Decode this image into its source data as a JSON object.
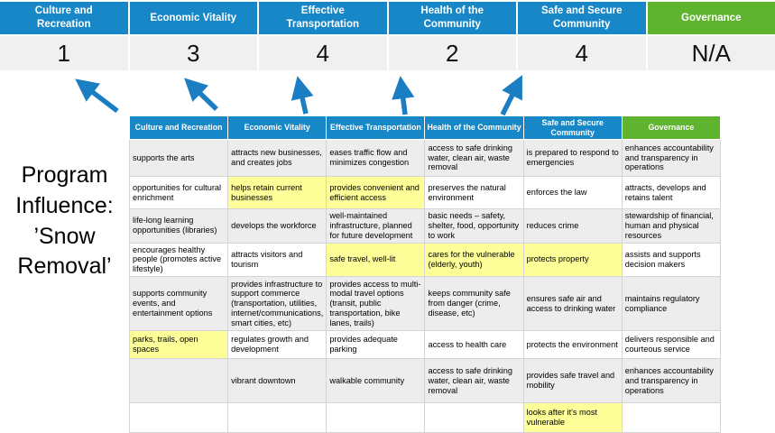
{
  "program_influence_label": "Program\nInfluence:\n’Snow\nRemoval’",
  "scorecard": {
    "columns": [
      {
        "label": "Culture and Recreation",
        "score": "1",
        "type": "priority"
      },
      {
        "label": "Economic Vitality",
        "score": "3",
        "type": "priority"
      },
      {
        "label": "Effective Transportation",
        "score": "4",
        "type": "priority"
      },
      {
        "label": "Health of the Community",
        "score": "2",
        "type": "priority"
      },
      {
        "label": "Safe and Secure Community",
        "score": "4",
        "type": "priority"
      },
      {
        "label": "Governance",
        "score": "N/A",
        "type": "governance"
      }
    ]
  },
  "matrix": {
    "headers": [
      {
        "label": "Culture and Recreation",
        "type": "priority"
      },
      {
        "label": "Economic Vitality",
        "type": "priority"
      },
      {
        "label": "Effective Transportation",
        "type": "priority"
      },
      {
        "label": "Health of the Community",
        "type": "priority"
      },
      {
        "label": "Safe and Secure Community",
        "type": "priority"
      },
      {
        "label": "Governance",
        "type": "governance"
      }
    ],
    "rows": [
      {
        "cells": [
          {
            "text": "supports the arts",
            "highlighted": false
          },
          {
            "text": "attracts new businesses, and creates jobs",
            "highlighted": false
          },
          {
            "text": "eases traffic flow and minimizes congestion",
            "highlighted": true
          },
          {
            "text": "access to safe drinking water, clean air, waste removal",
            "highlighted": false
          },
          {
            "text": "is prepared to respond to emergencies",
            "highlighted": true
          },
          {
            "text": "enhances accountability and transparency in operations",
            "highlighted": false
          }
        ]
      },
      {
        "cells": [
          {
            "text": "opportunities for cultural enrichment",
            "highlighted": false
          },
          {
            "text": "helps retain current businesses",
            "highlighted": true
          },
          {
            "text": "provides convenient and efficient access",
            "highlighted": true
          },
          {
            "text": "preserves the natural environment",
            "highlighted": false
          },
          {
            "text": "enforces the law",
            "highlighted": false
          },
          {
            "text": "attracts, develops and retains talent",
            "highlighted": false
          }
        ]
      },
      {
        "cells": [
          {
            "text": "life-long learning opportunities (libraries)",
            "highlighted": false
          },
          {
            "text": "develops the workforce",
            "highlighted": false
          },
          {
            "text": "well-maintained infrastructure, planned for future development",
            "highlighted": false
          },
          {
            "text": "basic needs – safety, shelter, food, opportunity to work",
            "highlighted": true
          },
          {
            "text": "reduces crime",
            "highlighted": false
          },
          {
            "text": "stewardship of financial, human and physical resources",
            "highlighted": false
          }
        ]
      },
      {
        "cells": [
          {
            "text": "encourages healthy people (promotes active lifestyle)",
            "highlighted": false
          },
          {
            "text": "attracts visitors and tourism",
            "highlighted": false
          },
          {
            "text": "safe travel, well-lit",
            "highlighted": true
          },
          {
            "text": "cares for the vulnerable (elderly, youth)",
            "highlighted": true
          },
          {
            "text": "protects property",
            "highlighted": true
          },
          {
            "text": "assists and supports decision makers",
            "highlighted": false
          }
        ]
      },
      {
        "cells": [
          {
            "text": "supports community events, and entertainment options",
            "highlighted": false
          },
          {
            "text": "provides infrastructure to support commerce (transportation, utilities, internet/communications, smart cities, etc)",
            "highlighted": true
          },
          {
            "text": "provides access to multi-modal travel options (transit, public transportation, bike lanes, trails)",
            "highlighted": true
          },
          {
            "text": "keeps community safe from danger (crime, disease, etc)",
            "highlighted": true
          },
          {
            "text": "ensures safe air and access to drinking water",
            "highlighted": false
          },
          {
            "text": "maintains regulatory compliance",
            "highlighted": false
          }
        ]
      },
      {
        "cells": [
          {
            "text": "parks, trails, open spaces",
            "highlighted": true
          },
          {
            "text": "regulates growth and development",
            "highlighted": false
          },
          {
            "text": "provides adequate parking",
            "highlighted": false
          },
          {
            "text": "access to health care",
            "highlighted": false
          },
          {
            "text": "protects the environment",
            "highlighted": false
          },
          {
            "text": "delivers responsible and courteous service",
            "highlighted": false
          }
        ]
      },
      {
        "cells": [
          {
            "text": "",
            "highlighted": false
          },
          {
            "text": "vibrant downtown",
            "highlighted": false
          },
          {
            "text": "walkable community",
            "highlighted": false
          },
          {
            "text": "access to safe drinking water, clean air, waste removal",
            "highlighted": false
          },
          {
            "text": "provides safe travel and mobility",
            "highlighted": true
          },
          {
            "text": "enhances accountability and transparency in operations",
            "highlighted": false
          }
        ]
      },
      {
        "cells": [
          {
            "text": "",
            "highlighted": false
          },
          {
            "text": "",
            "highlighted": false
          },
          {
            "text": "",
            "highlighted": false
          },
          {
            "text": "",
            "highlighted": false
          },
          {
            "text": "looks after it's most vulnerable",
            "highlighted": true
          },
          {
            "text": "",
            "highlighted": false
          }
        ]
      }
    ]
  },
  "colors": {
    "priority_header": "#1787C8",
    "governance_header": "#5FB32E",
    "highlight_yellow": "#FFFF99",
    "band_gray": "#EDEDED",
    "score_row_bg": "#F0F0F0",
    "arrow_blue": "#1B7EC3"
  }
}
